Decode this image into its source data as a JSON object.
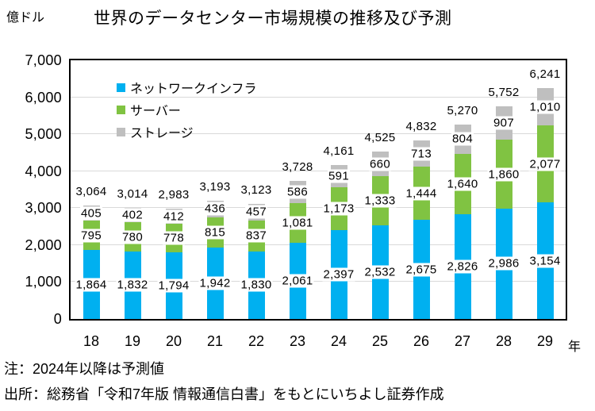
{
  "header": {
    "unit_label": "億ドル",
    "title": "世界のデータセンター市場規模の推移及び予測"
  },
  "chart_data": {
    "type": "bar",
    "stacked": true,
    "title": "世界のデータセンター市場規模の推移及び予測",
    "y_unit": "億ドル",
    "categories": [
      "18",
      "19",
      "20",
      "21",
      "22",
      "23",
      "24",
      "25",
      "26",
      "27",
      "28",
      "29"
    ],
    "x_axis_suffix": "年",
    "series": [
      {
        "name": "ネットワークインフラ",
        "color": "#00B0F0",
        "values": [
          1864,
          1832,
          1794,
          1942,
          1830,
          2061,
          2397,
          2532,
          2675,
          2826,
          2986,
          3154
        ]
      },
      {
        "name": "サーバー",
        "color": "#80C342",
        "values": [
          795,
          780,
          778,
          815,
          837,
          1081,
          1173,
          1333,
          1444,
          1640,
          1860,
          2077
        ]
      },
      {
        "name": "ストレージ",
        "color": "#BFBFBF",
        "values": [
          405,
          402,
          412,
          436,
          457,
          586,
          591,
          660,
          713,
          804,
          907,
          1010
        ]
      }
    ],
    "totals": [
      3064,
      3014,
      2983,
      3193,
      3123,
      3728,
      4161,
      4525,
      4832,
      5270,
      5752,
      6241
    ],
    "ylim": [
      0,
      7000
    ],
    "y_ticks": [
      0,
      1000,
      2000,
      3000,
      4000,
      5000,
      6000,
      7000
    ],
    "grid": true,
    "legend_position": "top-left-inside"
  },
  "footer": {
    "note": "注：2024年以降は予測値",
    "source": "出所：総務省「令和7年版 情報通信白書」をもとにいちよし証券作成"
  }
}
